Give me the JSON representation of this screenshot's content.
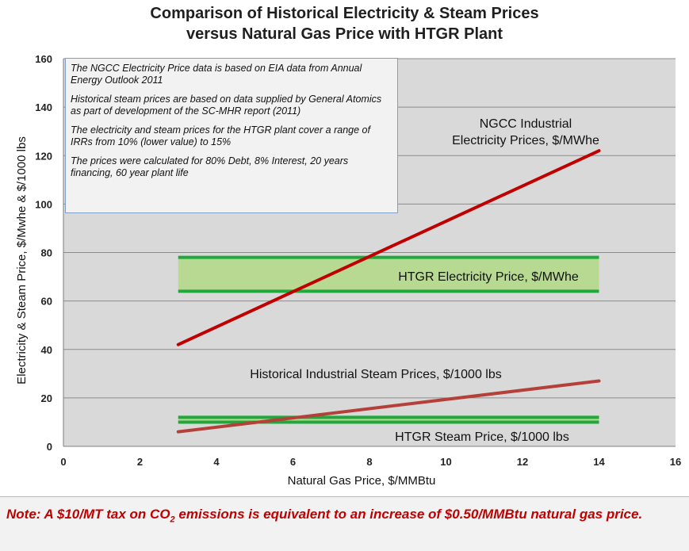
{
  "chart_data": {
    "type": "line",
    "title_line1": "Comparison of Historical Electricity & Steam Prices",
    "title_line2": "versus Natural Gas Price with HTGR Plant",
    "xlabel": "Natural Gas Price, $/MMBtu",
    "ylabel": "Electricity & Steam Price, $/Mwhe & $/1000 lbs",
    "xlim": [
      0,
      16
    ],
    "ylim": [
      0,
      160
    ],
    "x_ticks": [
      0,
      2,
      4,
      6,
      8,
      10,
      12,
      14,
      16
    ],
    "y_ticks": [
      0,
      20,
      40,
      60,
      80,
      100,
      120,
      140,
      160
    ],
    "grid": "horizontal",
    "plot_background": "#d9d9d9",
    "series": [
      {
        "label_lines": [
          "NGCC Industrial",
          "Electricity Prices, $/MWhe"
        ],
        "color": "#c00000",
        "x": [
          3,
          14
        ],
        "y": [
          42,
          122
        ]
      },
      {
        "label_lines": [
          "Historical Industrial Steam Prices, $/1000 lbs"
        ],
        "color": "#b5403a",
        "x": [
          3,
          14
        ],
        "y": [
          6,
          27
        ]
      }
    ],
    "bands": [
      {
        "label": "HTGR Electricity Price, $/MWhe",
        "x_range": [
          3,
          14
        ],
        "y_low": 64,
        "y_high": 78,
        "line_color": "#1fa83b",
        "fill_color": "#b3d88a"
      },
      {
        "label": "HTGR Steam Price, $/1000 lbs",
        "x_range": [
          3,
          14
        ],
        "y_low": 10,
        "y_high": 12,
        "line_color": "#1fa83b",
        "fill_color": "#b3d88a"
      }
    ]
  },
  "info_box": {
    "p1": "The NGCC Electricity Price data is based  on EIA data from Annual Energy Outlook 2011",
    "p2": "Historical  steam prices are based on data supplied by General Atomics as part of development of the SC-MHR report (2011)",
    "p3": "The  electricity and steam prices for the HTGR plant cover a range of  IRRs from 10% (lower value) to 15%",
    "p4": "The prices were calculated for 80% Debt, 8% Interest, 20 years financing, 60 year plant life"
  },
  "note": {
    "part1": "Note: A $10/MT tax on CO",
    "sub": "2",
    "part2": " emissions is equivalent to an increase of $0.50/MMBtu natural gas price."
  }
}
